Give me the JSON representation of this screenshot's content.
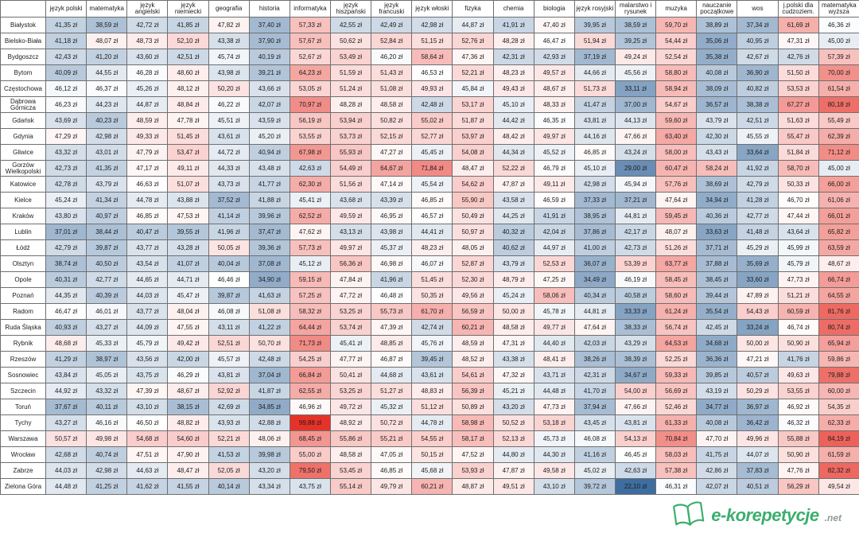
{
  "chart_data": {
    "type": "heatmap",
    "title": "",
    "unit": "zł",
    "legend": "none",
    "columns": [
      "język polski",
      "matematyka",
      "język angielski",
      "język niemiecki",
      "geografia",
      "historia",
      "informatyka",
      "język hiszpański",
      "język francuski",
      "język włoski",
      "fizyka",
      "chemia",
      "biologia",
      "język rosyjski",
      "malarstwo i rysunek",
      "muzyka",
      "nauczanie początkowe",
      "wos",
      "j.polski dla cudzoziem.",
      "matematyka wyższa"
    ],
    "rows": [
      "Białystok",
      "Bielsko-Biała",
      "Bydgoszcz",
      "Bytom",
      "Częstochowa",
      "Dąbrowa Górnicza",
      "Gdańsk",
      "Gdynia",
      "Gliwice",
      "Gorzów Wielkopolski",
      "Katowice",
      "Kielce",
      "Kraków",
      "Lublin",
      "Łódź",
      "Olsztyn",
      "Opole",
      "Poznań",
      "Radom",
      "Ruda Śląska",
      "Rybnik",
      "Rzeszów",
      "Sosnowiec",
      "Szczecin",
      "Toruń",
      "Tychy",
      "Warszawa",
      "Wrocław",
      "Zabrze",
      "Zielona Góra"
    ],
    "values": [
      [
        41.35,
        38.59,
        42.72,
        41.85,
        47.82,
        37.4,
        57.33,
        42.55,
        42.49,
        42.98,
        44.87,
        41.91,
        47.4,
        39.95,
        38.59,
        59.7,
        38.89,
        37.34,
        61.69,
        46.36
      ],
      [
        41.18,
        48.07,
        48.73,
        52.1,
        43.38,
        37.9,
        57.67,
        50.62,
        52.84,
        51.15,
        52.76,
        48.28,
        46.47,
        51.94,
        39.25,
        54.44,
        35.06,
        40.95,
        47.31,
        45.0
      ],
      [
        42.43,
        41.2,
        43.6,
        42.51,
        45.74,
        40.19,
        52.67,
        53.49,
        46.2,
        58.64,
        47.36,
        42.31,
        42.93,
        37.19,
        49.24,
        52.54,
        35.38,
        42.67,
        42.76,
        57.39
      ],
      [
        40.09,
        44.55,
        46.28,
        48.6,
        43.98,
        39.21,
        64.23,
        51.59,
        51.43,
        46.53,
        52.21,
        48.23,
        49.57,
        44.66,
        45.56,
        58.8,
        40.08,
        36.9,
        51.5,
        70.0
      ],
      [
        46.12,
        46.37,
        45.26,
        48.12,
        50.2,
        43.66,
        53.05,
        51.24,
        51.08,
        49.93,
        45.84,
        49.43,
        48.67,
        51.73,
        33.11,
        58.94,
        38.09,
        40.82,
        53.53,
        61.54
      ],
      [
        46.23,
        44.23,
        44.87,
        48.84,
        46.22,
        42.07,
        70.97,
        48.28,
        48.58,
        42.48,
        53.17,
        45.1,
        48.33,
        41.47,
        37.0,
        54.67,
        36.57,
        38.38,
        67.27,
        80.18
      ],
      [
        43.69,
        40.23,
        48.59,
        47.78,
        45.51,
        43.59,
        56.19,
        53.94,
        50.82,
        55.02,
        51.87,
        44.42,
        46.35,
        43.81,
        44.13,
        59.6,
        43.79,
        42.51,
        51.63,
        55.49
      ],
      [
        47.29,
        42.98,
        49.33,
        51.45,
        43.61,
        45.2,
        53.55,
        53.73,
        52.15,
        52.77,
        53.97,
        48.42,
        49.97,
        44.16,
        47.66,
        63.4,
        42.3,
        45.55,
        55.47,
        62.39
      ],
      [
        43.32,
        43.01,
        47.79,
        53.47,
        44.72,
        40.94,
        67.98,
        55.93,
        47.27,
        45.45,
        54.08,
        44.34,
        45.52,
        46.85,
        43.24,
        58.0,
        43.43,
        33.64,
        51.84,
        71.12
      ],
      [
        42.73,
        41.35,
        47.17,
        49.11,
        44.33,
        43.48,
        42.63,
        54.49,
        64.67,
        71.84,
        48.47,
        52.22,
        46.79,
        45.1,
        29.0,
        60.47,
        58.24,
        41.92,
        58.7,
        45.0
      ],
      [
        42.78,
        43.79,
        46.63,
        51.07,
        43.73,
        41.77,
        62.3,
        51.56,
        47.14,
        45.54,
        54.62,
        47.87,
        49.11,
        42.98,
        45.94,
        57.76,
        38.69,
        42.79,
        50.33,
        66.0
      ],
      [
        45.24,
        41.34,
        44.78,
        43.88,
        37.52,
        41.88,
        45.41,
        43.68,
        43.39,
        46.85,
        55.9,
        43.58,
        46.59,
        37.33,
        37.21,
        47.64,
        34.94,
        41.28,
        46.7,
        61.06
      ],
      [
        43.8,
        40.97,
        46.85,
        47.53,
        41.14,
        39.96,
        62.52,
        49.59,
        46.95,
        46.57,
        50.49,
        44.25,
        41.91,
        38.95,
        44.81,
        59.45,
        40.36,
        42.77,
        47.44,
        66.01
      ],
      [
        37.01,
        38.44,
        40.47,
        39.55,
        41.96,
        37.47,
        47.62,
        43.13,
        43.98,
        44.41,
        50.97,
        40.32,
        42.04,
        37.86,
        42.17,
        48.07,
        33.63,
        41.48,
        43.64,
        65.82
      ],
      [
        42.79,
        39.87,
        43.77,
        43.28,
        50.05,
        39.36,
        57.73,
        49.97,
        45.37,
        48.23,
        48.05,
        40.62,
        44.97,
        41.0,
        42.73,
        51.26,
        37.71,
        45.29,
        45.99,
        63.59
      ],
      [
        38.74,
        40.5,
        43.54,
        41.07,
        40.04,
        37.08,
        45.12,
        56.36,
        46.98,
        46.07,
        52.87,
        43.79,
        52.53,
        36.07,
        53.39,
        63.77,
        37.88,
        35.69,
        45.79,
        48.67
      ],
      [
        40.31,
        42.77,
        44.65,
        44.71,
        46.46,
        34.9,
        59.15,
        47.84,
        41.96,
        51.45,
        52.3,
        48.79,
        47.25,
        34.49,
        46.19,
        58.45,
        38.45,
        33.6,
        47.73,
        66.74
      ],
      [
        44.35,
        40.39,
        44.03,
        45.47,
        39.87,
        41.63,
        57.25,
        47.72,
        46.48,
        50.35,
        49.56,
        45.24,
        58.06,
        40.34,
        40.58,
        58.6,
        39.44,
        47.89,
        51.21,
        64.55
      ],
      [
        46.47,
        46.01,
        43.77,
        48.04,
        46.08,
        51.08,
        58.32,
        53.25,
        55.73,
        61.7,
        56.59,
        50.0,
        45.78,
        44.81,
        33.33,
        61.24,
        35.54,
        54.43,
        60.59,
        81.76
      ],
      [
        40.93,
        43.27,
        44.09,
        47.55,
        43.11,
        41.22,
        64.44,
        53.74,
        47.39,
        42.74,
        60.21,
        48.58,
        49.77,
        47.64,
        38.33,
        56.74,
        42.45,
        33.24,
        46.74,
        80.74
      ],
      [
        48.68,
        45.33,
        45.79,
        49.42,
        52.51,
        50.7,
        71.73,
        45.41,
        48.85,
        45.76,
        48.59,
        47.31,
        44.4,
        42.03,
        43.29,
        64.53,
        34.68,
        50.0,
        50.9,
        65.94
      ],
      [
        41.29,
        38.97,
        43.56,
        42.0,
        45.57,
        42.48,
        54.25,
        47.77,
        46.87,
        39.45,
        48.52,
        43.38,
        48.41,
        38.26,
        38.39,
        52.25,
        36.36,
        47.21,
        41.76,
        59.86
      ],
      [
        43.84,
        45.05,
        43.75,
        46.29,
        43.81,
        37.04,
        66.84,
        50.41,
        44.68,
        43.61,
        54.61,
        47.32,
        43.71,
        42.31,
        34.67,
        59.33,
        39.85,
        40.57,
        49.63,
        79.88
      ],
      [
        44.92,
        43.32,
        47.39,
        48.67,
        52.92,
        41.87,
        62.55,
        53.25,
        51.27,
        48.83,
        56.39,
        45.21,
        44.48,
        41.7,
        54.0,
        56.69,
        43.19,
        50.29,
        53.55,
        60.0
      ],
      [
        37.67,
        40.11,
        43.1,
        38.15,
        42.69,
        34.85,
        46.96,
        49.72,
        45.32,
        51.12,
        50.89,
        43.2,
        47.73,
        37.94,
        47.66,
        52.46,
        34.77,
        36.97,
        46.92,
        54.35
      ],
      [
        43.27,
        46.16,
        46.5,
        48.82,
        43.93,
        42.88,
        99.88,
        48.92,
        50.72,
        44.78,
        58.98,
        50.52,
        53.18,
        43.45,
        43.81,
        61.33,
        40.08,
        36.42,
        46.32,
        62.33
      ],
      [
        50.57,
        49.98,
        54.68,
        54.6,
        52.21,
        48.06,
        68.45,
        55.86,
        55.21,
        54.55,
        58.17,
        52.13,
        45.73,
        46.08,
        54.13,
        70.84,
        47.7,
        49.96,
        55.88,
        84.19
      ],
      [
        42.68,
        40.74,
        47.51,
        47.9,
        41.53,
        39.98,
        55.0,
        48.58,
        47.05,
        50.15,
        47.52,
        44.8,
        44.3,
        41.16,
        46.45,
        58.03,
        41.75,
        44.07,
        50.9,
        61.59
      ],
      [
        44.03,
        42.98,
        44.63,
        48.47,
        52.05,
        43.2,
        79.5,
        53.45,
        46.85,
        45.68,
        53.93,
        47.87,
        49.58,
        45.02,
        42.63,
        57.38,
        42.86,
        37.83,
        47.76,
        82.32
      ],
      [
        44.48,
        41.25,
        41.62,
        41.55,
        40.14,
        43.34,
        43.75,
        55.14,
        49.79,
        60.21,
        48.87,
        49.51,
        43.1,
        39.72,
        22.1,
        46.31,
        42.07,
        40.51,
        56.29,
        49.54
      ]
    ],
    "color_scale": {
      "min": 22.1,
      "mid": 46.5,
      "max": 99.88,
      "low_color": "#3E6D9F",
      "mid_color": "#FFFFFF",
      "high_color": "#E63329"
    }
  },
  "footer": {
    "brand": "e-korepetycje",
    "brand_suffix": ".net",
    "brand_color": "#3CAE6E",
    "suffix_color": "#8f9a90"
  }
}
